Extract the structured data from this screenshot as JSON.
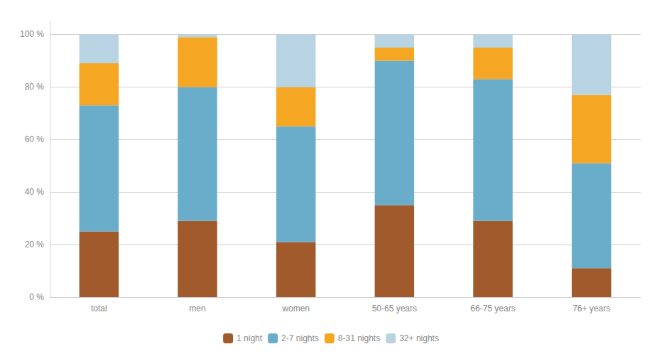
{
  "chart_data": {
    "type": "bar",
    "stacked": true,
    "categories": [
      "total",
      "men",
      "women",
      "50-65 years",
      "66-75 years",
      "76+ years"
    ],
    "series": [
      {
        "name": "1 night",
        "color": "#a05a2c",
        "values": [
          25,
          29,
          21,
          35,
          29,
          11
        ]
      },
      {
        "name": "2-7 nights",
        "color": "#6aadcb",
        "values": [
          48,
          51,
          44,
          55,
          54,
          40
        ]
      },
      {
        "name": "8-31 nights",
        "color": "#f5a623",
        "values": [
          16,
          19,
          15,
          5,
          12,
          26
        ]
      },
      {
        "name": "32+ nights",
        "color": "#b8d4e3",
        "values": [
          11,
          1,
          20,
          5,
          5,
          23
        ]
      }
    ],
    "ylim": [
      0,
      105
    ],
    "yticks": [
      {
        "value": 0,
        "label": "0 %"
      },
      {
        "value": 20,
        "label": "20 %"
      },
      {
        "value": 40,
        "label": "40 %"
      },
      {
        "value": 60,
        "label": "60 %"
      },
      {
        "value": 80,
        "label": "80 %"
      },
      {
        "value": 100,
        "label": "100 %"
      }
    ],
    "grid": true,
    "legend": "bottom"
  }
}
